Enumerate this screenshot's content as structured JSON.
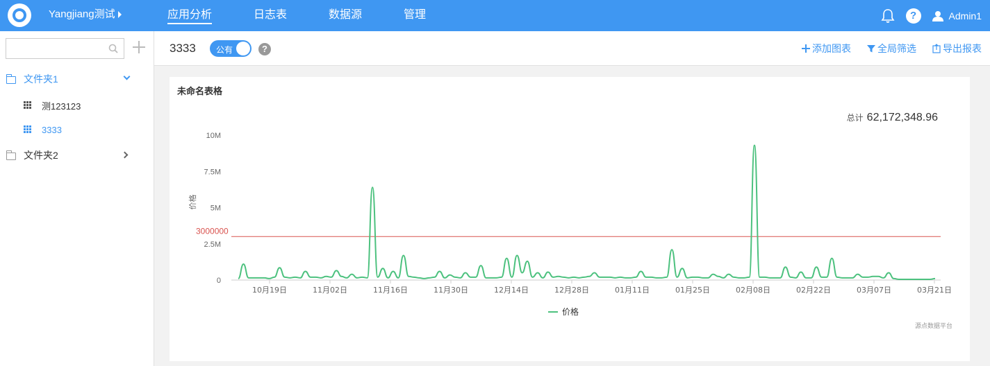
{
  "header": {
    "project": "Yangjiang测试",
    "tabs": [
      {
        "label": "应用分析",
        "active": true
      },
      {
        "label": "日志表",
        "active": false
      },
      {
        "label": "数据源",
        "active": false
      },
      {
        "label": "管理",
        "active": false
      }
    ],
    "help": "?",
    "username": "Admin1",
    "accent": "#3f97f2"
  },
  "sidebar": {
    "search": {
      "value": "",
      "placeholder": ""
    },
    "tree": [
      {
        "label": "文件夹1",
        "type": "folder",
        "expanded": true
      },
      {
        "label": "测123123",
        "type": "table"
      },
      {
        "label": "3333",
        "type": "table",
        "selected": true
      },
      {
        "label": "文件夹2",
        "type": "folder",
        "expanded": false
      }
    ]
  },
  "report": {
    "title": "3333",
    "visibility": "公有",
    "help": "?",
    "actions": [
      {
        "label": "添加图表",
        "icon": "plus-icon"
      },
      {
        "label": "全局筛选",
        "icon": "filter-icon"
      },
      {
        "label": "导出报表",
        "icon": "export-icon"
      }
    ]
  },
  "card": {
    "title": "未命名表格",
    "total_label": "总计",
    "total_value": "62,172,348.96",
    "watermark": "源点数据平台"
  },
  "chart_data": {
    "type": "line",
    "title": "",
    "ylabel": "价格",
    "xlabel": "",
    "ylim": [
      0,
      10000000
    ],
    "yticks": [
      "0",
      "2.5M",
      "5M",
      "7.5M",
      "10M"
    ],
    "xticks": [
      "10月19日",
      "11月02日",
      "11月16日",
      "11月30日",
      "12月14日",
      "12月28日",
      "01月11日",
      "01月25日",
      "02月08日",
      "02月22日",
      "03月07日",
      "03月21日"
    ],
    "x_start": "10月13日",
    "x_end": "03月22日",
    "threshold": {
      "value": 3000000,
      "label": "3000000",
      "color": "#d9534f"
    },
    "series": [
      {
        "name": "价格",
        "color": "#4cc17e",
        "values": [
          100000,
          1100000,
          150000,
          150000,
          150000,
          150000,
          100000,
          200000,
          850000,
          200000,
          150000,
          200000,
          150000,
          600000,
          200000,
          200000,
          150000,
          250000,
          200000,
          650000,
          250000,
          150000,
          400000,
          150000,
          200000,
          150000,
          6400000,
          200000,
          800000,
          150000,
          600000,
          150000,
          1700000,
          250000,
          200000,
          150000,
          100000,
          150000,
          200000,
          600000,
          150000,
          350000,
          200000,
          150000,
          500000,
          200000,
          200000,
          1000000,
          150000,
          150000,
          150000,
          200000,
          1500000,
          200000,
          1700000,
          500000,
          1300000,
          200000,
          500000,
          150000,
          550000,
          200000,
          250000,
          200000,
          150000,
          200000,
          150000,
          200000,
          250000,
          500000,
          200000,
          200000,
          200000,
          150000,
          200000,
          150000,
          150000,
          200000,
          600000,
          200000,
          200000,
          150000,
          150000,
          200000,
          2100000,
          200000,
          800000,
          150000,
          200000,
          200000,
          150000,
          150000,
          400000,
          250000,
          150000,
          400000,
          200000,
          150000,
          150000,
          200000,
          9300000,
          200000,
          200000,
          150000,
          150000,
          150000,
          900000,
          200000,
          150000,
          550000,
          150000,
          150000,
          900000,
          200000,
          200000,
          1500000,
          200000,
          150000,
          150000,
          150000,
          400000,
          200000,
          200000,
          250000,
          250000,
          150000,
          500000,
          100000,
          50000,
          50000,
          50000,
          50000,
          50000,
          50000,
          50000,
          100000
        ]
      }
    ],
    "legend": "bottom-center",
    "grid": false
  }
}
